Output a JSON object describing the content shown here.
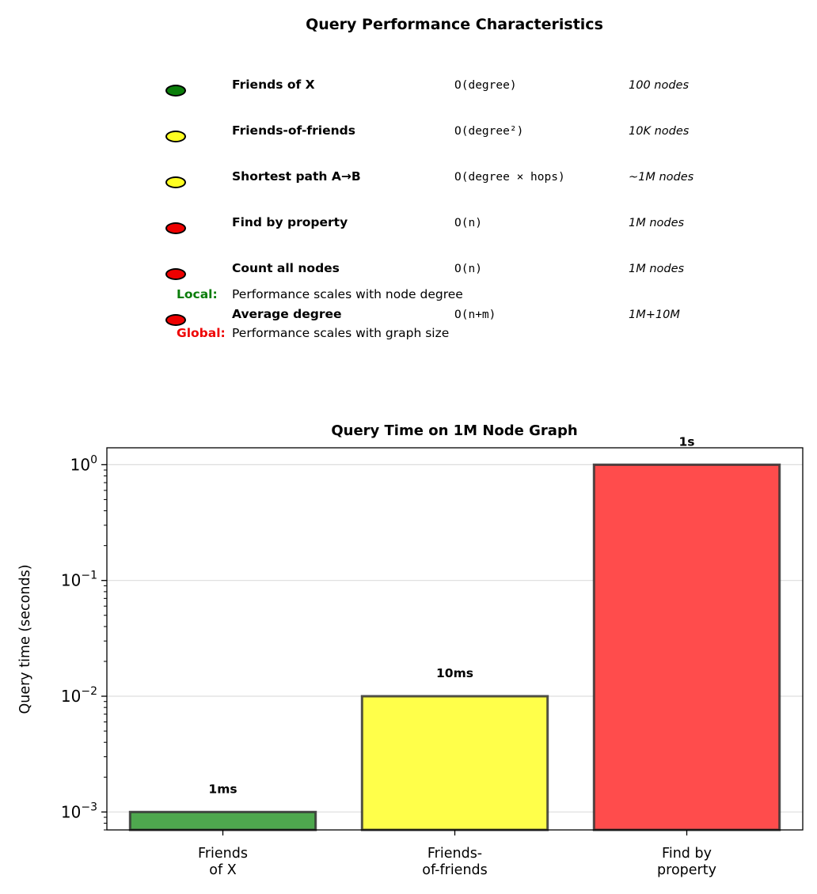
{
  "table": {
    "title": "Query Performance Characteristics",
    "rows": [
      {
        "name": "Friends of X",
        "complexity": "O(degree)",
        "size": "100 nodes",
        "color": "#0a7d0a"
      },
      {
        "name": "Friends-of-friends",
        "complexity": "O(degree²)",
        "size": "10K nodes",
        "color": "#ffff22"
      },
      {
        "name": "Shortest path A→B",
        "complexity": "O(degree × hops)",
        "size": "~1M nodes",
        "color": "#ffff22"
      },
      {
        "name": "Find by property",
        "complexity": "O(n)",
        "size": "1M nodes",
        "color": "#ee0000"
      },
      {
        "name": "Count all nodes",
        "complexity": "O(n)",
        "size": "1M nodes",
        "color": "#ee0000"
      },
      {
        "name": "Average degree",
        "complexity": "O(n+m)",
        "size": "1M+10M",
        "color": "#ee0000"
      }
    ],
    "notes": [
      {
        "label": "Local:",
        "text": "Performance scales with node degree",
        "color": "#0a7d0a"
      },
      {
        "label": "Global:",
        "text": "Performance scales with graph size",
        "color": "#ee0000"
      }
    ]
  },
  "chart_data": {
    "type": "bar",
    "title": "Query Time on 1M Node Graph",
    "ylabel": "Query time (seconds)",
    "yscale": "log",
    "ylim": [
      0.0007,
      1.4
    ],
    "categories": [
      "Friends\nof X",
      "Friends-\nof-friends",
      "Find by\nproperty"
    ],
    "values": [
      0.001,
      0.01,
      1
    ],
    "bar_labels": [
      "1ms",
      "10ms",
      "1s"
    ],
    "colors": [
      "#4ea84e",
      "#ffff4a",
      "#ff4c4c"
    ],
    "yticks": [
      {
        "value": 0.001,
        "exp": "−3"
      },
      {
        "value": 0.01,
        "exp": "−2"
      },
      {
        "value": 0.1,
        "exp": "−1"
      },
      {
        "value": 1,
        "exp": "0"
      }
    ],
    "ytick_base": "10",
    "grid": true
  }
}
